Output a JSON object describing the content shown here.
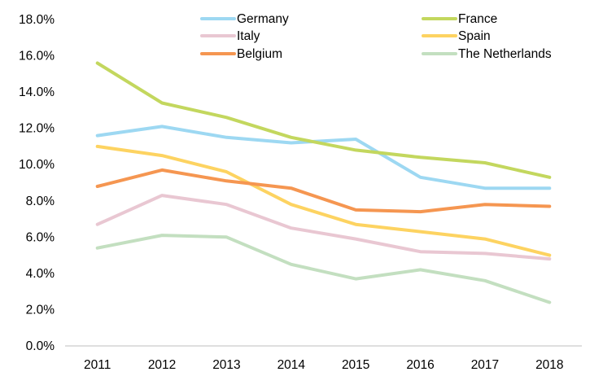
{
  "chart_data": {
    "type": "line",
    "title": "",
    "xlabel": "",
    "ylabel": "",
    "categories": [
      "2011",
      "2012",
      "2013",
      "2014",
      "2015",
      "2016",
      "2017",
      "2018"
    ],
    "ylim": [
      0,
      18
    ],
    "ytick_step": 2,
    "ytick_labels": [
      "0.0%",
      "2.0%",
      "4.0%",
      "6.0%",
      "8.0%",
      "10.0%",
      "12.0%",
      "14.0%",
      "16.0%",
      "18.0%"
    ],
    "grid": false,
    "legend_position": "top",
    "series": [
      {
        "name": "Germany",
        "color": "#9dd8f2",
        "values": [
          11.6,
          12.1,
          11.5,
          11.2,
          11.4,
          9.3,
          8.7,
          8.7
        ]
      },
      {
        "name": "France",
        "color": "#c3d75e",
        "values": [
          15.6,
          13.4,
          12.6,
          11.5,
          10.8,
          10.4,
          10.1,
          9.3
        ]
      },
      {
        "name": "Italy",
        "color": "#e9c7d2",
        "values": [
          6.7,
          8.3,
          7.8,
          6.5,
          5.9,
          5.2,
          5.1,
          4.8
        ]
      },
      {
        "name": "Spain",
        "color": "#fdd361",
        "values": [
          11.0,
          10.5,
          9.6,
          7.8,
          6.7,
          6.3,
          5.9,
          5.0
        ]
      },
      {
        "name": "Belgium",
        "color": "#f59651",
        "values": [
          8.8,
          9.7,
          9.1,
          8.7,
          7.5,
          7.4,
          7.8,
          7.7
        ]
      },
      {
        "name": "The Netherlands",
        "color": "#c3dfc0",
        "values": [
          5.4,
          6.1,
          6.0,
          4.5,
          3.7,
          4.2,
          3.6,
          2.4
        ]
      }
    ]
  }
}
